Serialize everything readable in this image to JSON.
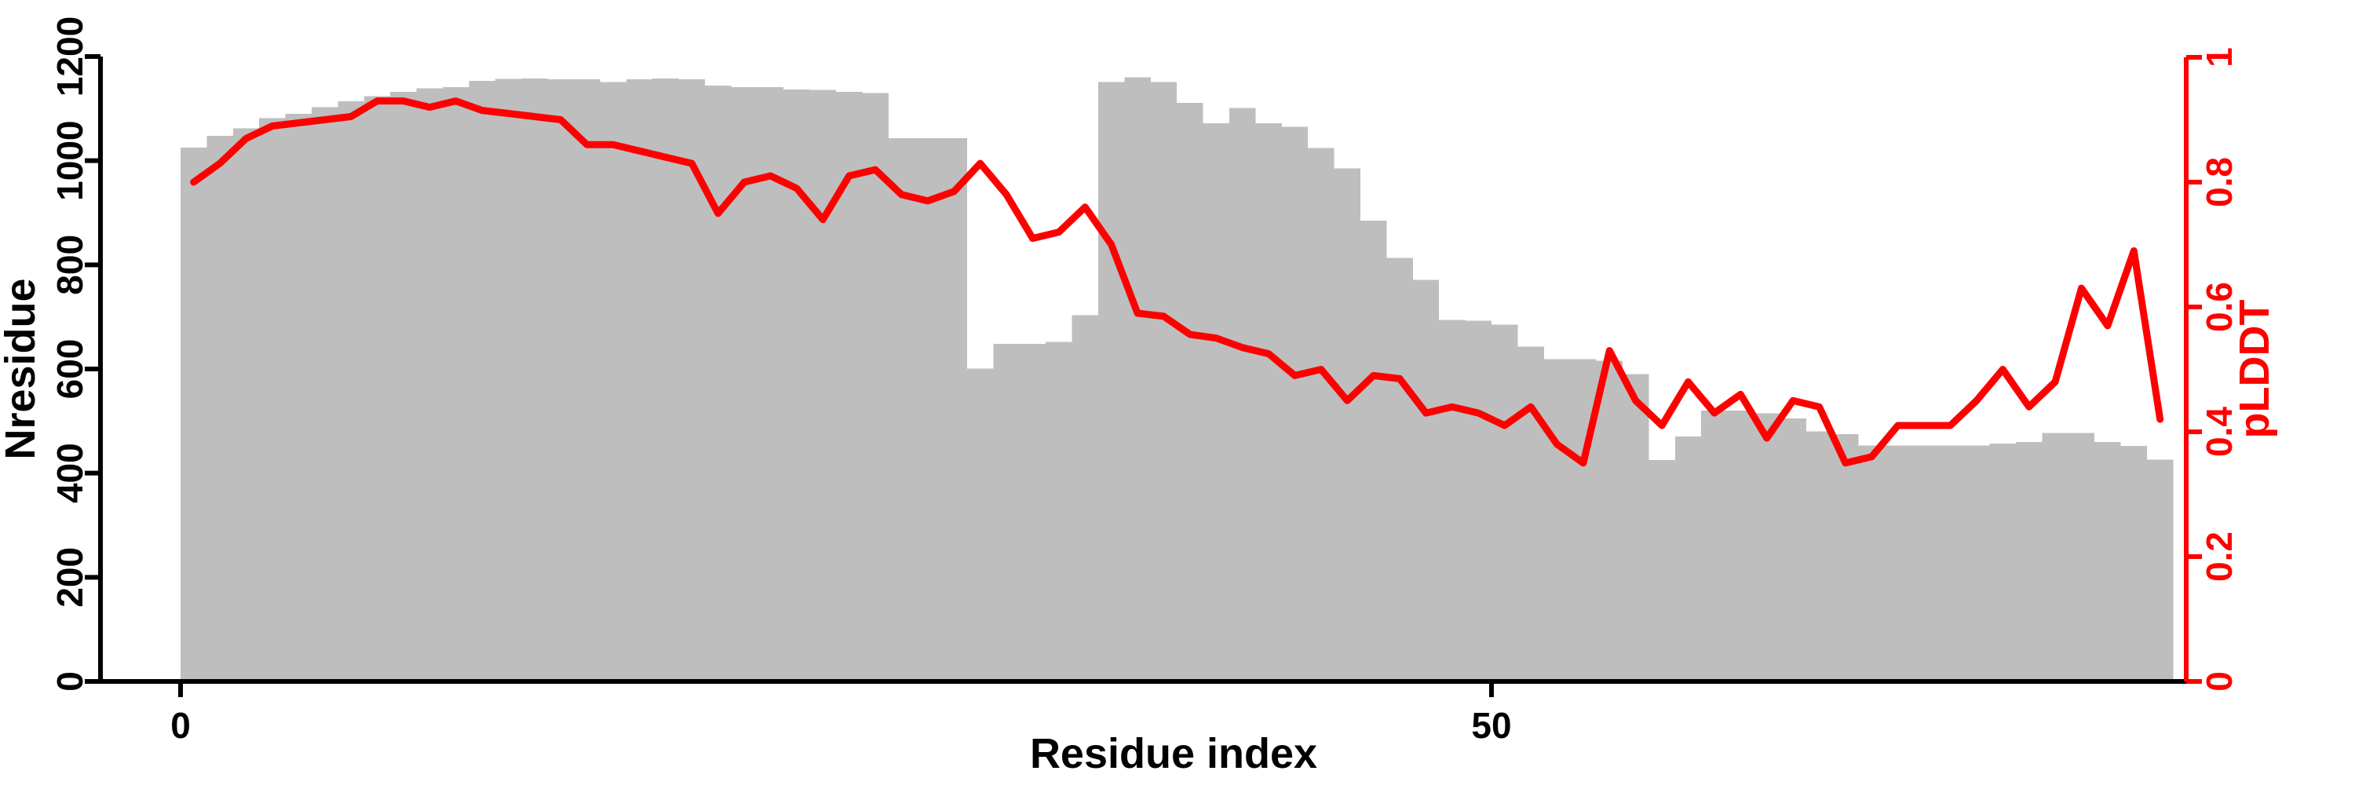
{
  "figure": {
    "background": "#ffffff",
    "bar_color": "#BEBEBE",
    "line_color": "#FF0000",
    "axis_color": "#000000",
    "y_left_axis": {
      "label": "Nresidue",
      "color": "#000000",
      "range": [
        0,
        1200
      ],
      "tick_values": [
        0,
        200,
        400,
        600,
        800,
        1000,
        1200
      ],
      "tick_labels": [
        "0",
        "200",
        "400",
        "600",
        "800",
        "1000",
        "1200"
      ]
    },
    "y_right_axis": {
      "label": "pLDDT",
      "color": "#FF0000",
      "range": [
        0,
        1
      ],
      "tick_values": [
        0,
        0.2,
        0.4,
        0.6,
        0.8,
        1
      ],
      "tick_labels": [
        "0",
        "0.2",
        "0.4",
        "0.6",
        "0.8",
        "1"
      ]
    },
    "x_axis": {
      "label": "Residue index",
      "color": "#000000",
      "range": [
        0,
        76
      ],
      "tick_values": [
        0,
        50
      ],
      "tick_labels": [
        "0",
        "50"
      ]
    }
  },
  "chart_data": {
    "type": "bar+line",
    "title": "",
    "xlabel": "Residue index",
    "ylabel_left": "Nresidue",
    "ylabel_right": "pLDDT",
    "x_bin_start": 0,
    "bar_width": 1,
    "x": [
      0,
      1,
      2,
      3,
      4,
      5,
      6,
      7,
      8,
      9,
      10,
      11,
      12,
      13,
      14,
      15,
      16,
      17,
      18,
      19,
      20,
      21,
      22,
      23,
      24,
      25,
      26,
      27,
      28,
      29,
      30,
      31,
      32,
      33,
      34,
      35,
      36,
      37,
      38,
      39,
      40,
      41,
      42,
      43,
      44,
      45,
      46,
      47,
      48,
      49,
      50,
      51,
      52,
      53,
      54,
      55,
      56,
      57,
      58,
      59,
      60,
      61,
      62,
      63,
      64,
      65,
      66,
      67,
      68,
      69,
      70,
      71,
      72,
      73,
      74,
      75
    ],
    "grid": false,
    "legend": false,
    "xlim": [
      0,
      76.5
    ],
    "ylim_left": [
      0,
      1200
    ],
    "ylim_right": [
      0,
      1
    ],
    "series": [
      {
        "name": "Nresidue",
        "type": "bar",
        "axis": "left",
        "color": "#BEBEBE",
        "values": [
          1025,
          1048,
          1062,
          1082,
          1090,
          1103,
          1114,
          1124,
          1132,
          1139,
          1141,
          1153,
          1157,
          1158,
          1156,
          1156,
          1151,
          1156,
          1158,
          1156,
          1144,
          1141,
          1141,
          1137,
          1136,
          1132,
          1130,
          1043,
          1043,
          1043,
          601,
          648,
          648,
          652,
          703,
          1151,
          1160,
          1151,
          1111,
          1072,
          1101,
          1072,
          1065,
          1024,
          985,
          885,
          813,
          771,
          694,
          693,
          685,
          643,
          619,
          619,
          616,
          590,
          425,
          470,
          520,
          520,
          515,
          505,
          480,
          475,
          453,
          453,
          453,
          453,
          453,
          457,
          460,
          477,
          477,
          460,
          452,
          426
        ]
      },
      {
        "name": "pLDDT",
        "type": "line",
        "axis": "right",
        "color": "#FF0000",
        "values": [
          0.8,
          0.83,
          0.87,
          0.89,
          0.895,
          0.9,
          0.905,
          0.93,
          0.93,
          0.92,
          0.93,
          0.915,
          0.91,
          0.905,
          0.9,
          0.86,
          0.86,
          0.85,
          0.84,
          0.83,
          0.75,
          0.8,
          0.81,
          0.79,
          0.74,
          0.81,
          0.82,
          0.78,
          0.77,
          0.785,
          0.83,
          0.78,
          0.71,
          0.72,
          0.76,
          0.7,
          0.59,
          0.585,
          0.556,
          0.55,
          0.535,
          0.525,
          0.49,
          0.5,
          0.45,
          0.49,
          0.485,
          0.43,
          0.44,
          0.43,
          0.41,
          0.44,
          0.38,
          0.35,
          0.53,
          0.45,
          0.41,
          0.48,
          0.43,
          0.46,
          0.39,
          0.45,
          0.44,
          0.35,
          0.36,
          0.41,
          0.41,
          0.41,
          0.45,
          0.5,
          0.44,
          0.48,
          0.63,
          0.57,
          0.69,
          0.42
        ]
      }
    ]
  }
}
